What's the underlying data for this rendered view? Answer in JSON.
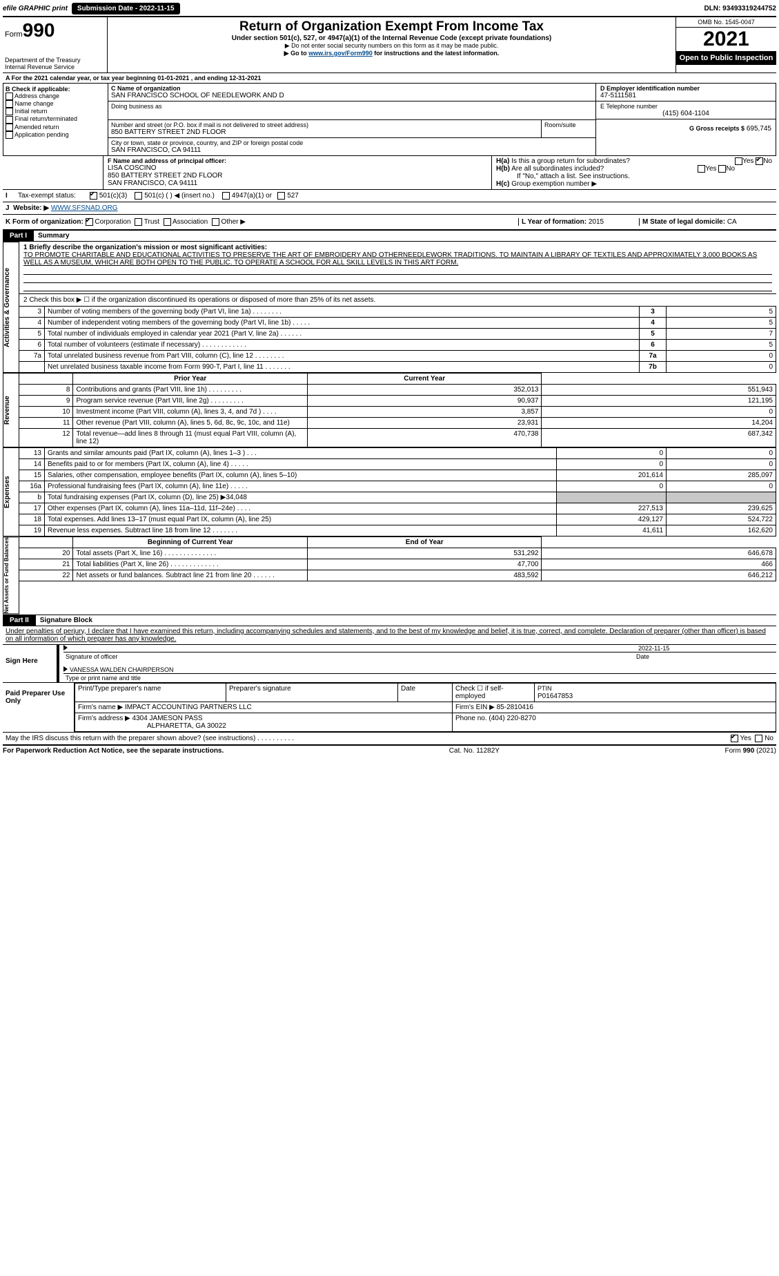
{
  "top": {
    "efile": "efile GRAPHIC print",
    "submission": "Submission Date - 2022-11-15",
    "dln": "DLN: 93493319244752"
  },
  "header": {
    "form_prefix": "Form",
    "form_no": "990",
    "title": "Return of Organization Exempt From Income Tax",
    "subtitle": "Under section 501(c), 527, or 4947(a)(1) of the Internal Revenue Code (except private foundations)",
    "note1": "▶ Do not enter social security numbers on this form as it may be made public.",
    "note2_pre": "▶ Go to ",
    "note2_link": "www.irs.gov/Form990",
    "note2_post": " for instructions and the latest information.",
    "dept": "Department of the Treasury",
    "irs": "Internal Revenue Service",
    "omb": "OMB No. 1545-0047",
    "year": "2021",
    "inspect": "Open to Public Inspection"
  },
  "A": {
    "text": "For the 2021 calendar year, or tax year beginning 01-01-2021     , and ending 12-31-2021"
  },
  "B": {
    "label": "B Check if applicable:",
    "items": [
      "Address change",
      "Name change",
      "Initial return",
      "Final return/terminated",
      "Amended return",
      "Application pending"
    ]
  },
  "C": {
    "name_label": "C Name of organization",
    "name": "SAN FRANCISCO SCHOOL OF NEEDLEWORK AND D",
    "dba_label": "Doing business as",
    "addr_label": "Number and street (or P.O. box if mail is not delivered to street address)",
    "room_label": "Room/suite",
    "addr": "850 BATTERY STREET 2ND FLOOR",
    "city_label": "City or town, state or province, country, and ZIP or foreign postal code",
    "city": "SAN FRANCISCO, CA  94111"
  },
  "D": {
    "label": "D Employer identification number",
    "value": "47-5111581"
  },
  "E": {
    "label": "E Telephone number",
    "value": "(415) 604-1104"
  },
  "G": {
    "label": "G Gross receipts $",
    "value": "695,745"
  },
  "F": {
    "label": "F  Name and address of principal officer:",
    "name": "LISA COSCINO",
    "addr1": "850 BATTERY STREET 2ND FLOOR",
    "addr2": "SAN FRANCISCO, CA  94111"
  },
  "H": {
    "a": "Is this a group return for subordinates?",
    "b": "Are all subordinates included?",
    "b_note": "If \"No,\" attach a list. See instructions.",
    "c": "Group exemption number ▶",
    "yes": "Yes",
    "no": "No"
  },
  "I": {
    "label": "Tax-exempt status:",
    "opts": [
      "501(c)(3)",
      "501(c) (   ) ◀ (insert no.)",
      "4947(a)(1) or",
      "527"
    ]
  },
  "J": {
    "label": "Website: ▶",
    "value": "WWW.SFSNAD.ORG"
  },
  "K": {
    "label": "K Form of organization:",
    "opts": [
      "Corporation",
      "Trust",
      "Association",
      "Other ▶"
    ]
  },
  "L": {
    "label": "L Year of formation:",
    "value": "2015"
  },
  "M": {
    "label": "M State of legal domicile:",
    "value": "CA"
  },
  "parts": {
    "p1": "Part I",
    "p1t": "Summary",
    "p2": "Part II",
    "p2t": "Signature Block"
  },
  "summary": {
    "l1_label": "1  Briefly describe the organization's mission or most significant activities:",
    "l1_text": "TO PROMOTE CHARITABLE AND EDUCATIONAL ACTIVITIES TO PRESERVE THE ART OF EMBROIDERY AND OTHERNEEDLEWORK TRADITIONS. TO MAINTAIN A LIBRARY OF TEXTILES AND APPROXIMATELY 3,000 BOOKS AS WELL AS A MUSEUM, WHICH ARE BOTH OPEN TO THE PUBLIC. TO OPERATE A SCHOOL FOR ALL SKILL LEVELS IN THIS ART FORM.",
    "l2": "2   Check this box ▶ ☐ if the organization discontinued its operations or disposed of more than 25% of its net assets.",
    "gov_rows": [
      {
        "n": "3",
        "t": "Number of voting members of the governing body (Part VI, line 1a)   .    .    .    .    .    .    .    .",
        "k": "3",
        "v": "5"
      },
      {
        "n": "4",
        "t": "Number of independent voting members of the governing body (Part VI, line 1b)   .    .    .    .    .",
        "k": "4",
        "v": "5"
      },
      {
        "n": "5",
        "t": "Total number of individuals employed in calendar year 2021 (Part V, line 2a)   .    .    .    .    .    .",
        "k": "5",
        "v": "7"
      },
      {
        "n": "6",
        "t": "Total number of volunteers (estimate if necessary)    .    .    .    .    .    .    .    .    .    .    .    .",
        "k": "6",
        "v": "5"
      },
      {
        "n": "7a",
        "t": "Total unrelated business revenue from Part VIII, column (C), line 12   .    .    .    .    .    .    .    .",
        "k": "7a",
        "v": "0"
      },
      {
        "n": "",
        "t": "Net unrelated business taxable income from Form 990-T, Part I, line 11    .    .    .    .    .    .    .",
        "k": "7b",
        "v": "0"
      }
    ],
    "col_headers": {
      "prior": "Prior Year",
      "current": "Current Year",
      "boy": "Beginning of Current Year",
      "eoy": "End of Year"
    },
    "rev_rows": [
      {
        "n": "8",
        "t": "Contributions and grants (Part VIII, line 1h)   .    .    .    .    .    .    .    .    .",
        "p": "352,013",
        "c": "551,943"
      },
      {
        "n": "9",
        "t": "Program service revenue (Part VIII, line 2g)   .    .    .    .    .    .    .    .    .",
        "p": "90,937",
        "c": "121,195"
      },
      {
        "n": "10",
        "t": "Investment income (Part VIII, column (A), lines 3, 4, and 7d )   .    .    .    .",
        "p": "3,857",
        "c": "0"
      },
      {
        "n": "11",
        "t": "Other revenue (Part VIII, column (A), lines 5, 6d, 8c, 9c, 10c, and 11e)",
        "p": "23,931",
        "c": "14,204"
      },
      {
        "n": "12",
        "t": "Total revenue—add lines 8 through 11 (must equal Part VIII, column (A), line 12)",
        "p": "470,738",
        "c": "687,342"
      }
    ],
    "exp_rows": [
      {
        "n": "13",
        "t": "Grants and similar amounts paid (Part IX, column (A), lines 1–3 )   .    .    .",
        "p": "0",
        "c": "0"
      },
      {
        "n": "14",
        "t": "Benefits paid to or for members (Part IX, column (A), line 4)   .    .    .    .    .",
        "p": "0",
        "c": "0"
      },
      {
        "n": "15",
        "t": "Salaries, other compensation, employee benefits (Part IX, column (A), lines 5–10)",
        "p": "201,614",
        "c": "285,097"
      },
      {
        "n": "16a",
        "t": "Professional fundraising fees (Part IX, column (A), line 11e)   .    .    .    .    .",
        "p": "0",
        "c": "0"
      },
      {
        "n": "b",
        "t": "Total fundraising expenses (Part IX, column (D), line 25) ▶34,048",
        "p": "",
        "c": "",
        "grey": true
      },
      {
        "n": "17",
        "t": "Other expenses (Part IX, column (A), lines 11a–11d, 11f–24e)   .    .    .    .",
        "p": "227,513",
        "c": "239,625"
      },
      {
        "n": "18",
        "t": "Total expenses. Add lines 13–17 (must equal Part IX, column (A), line 25)",
        "p": "429,127",
        "c": "524,722"
      },
      {
        "n": "19",
        "t": "Revenue less expenses. Subtract line 18 from line 12   .    .    .    .    .    .    .",
        "p": "41,611",
        "c": "162,620"
      }
    ],
    "na_rows": [
      {
        "n": "20",
        "t": "Total assets (Part X, line 16)   .    .    .    .    .    .    .    .    .    .    .    .    .    .",
        "p": "531,292",
        "c": "646,678"
      },
      {
        "n": "21",
        "t": "Total liabilities (Part X, line 26)   .    .    .    .    .    .    .    .    .    .    .    .    .",
        "p": "47,700",
        "c": "466"
      },
      {
        "n": "22",
        "t": "Net assets or fund balances. Subtract line 21 from line 20   .    .    .    .    .    .",
        "p": "483,592",
        "c": "646,212"
      }
    ],
    "side_labels": {
      "gov": "Activities & Governance",
      "rev": "Revenue",
      "exp": "Expenses",
      "na": "Net Assets or Fund Balances"
    }
  },
  "sigblock": {
    "perjury": "Under penalties of perjury, I declare that I have examined this return, including accompanying schedules and statements, and to the best of my knowledge and belief, it is true, correct, and complete. Declaration of preparer (other than officer) is based on all information of which preparer has any knowledge.",
    "sign_here": "Sign Here",
    "sig_officer": "Signature of officer",
    "sig_date": "2022-11-15",
    "date_lbl": "Date",
    "name_title": "VANESSA WALDEN  CHAIRPERSON",
    "type_name": "Type or print name and title",
    "paid": "Paid Preparer Use Only",
    "h1": "Print/Type preparer's name",
    "h2": "Preparer's signature",
    "h3": "Date",
    "check_self": "Check ☐ if self-employed",
    "ptin_lbl": "PTIN",
    "ptin": "P01647853",
    "firm_name_lbl": "Firm's name    ▶",
    "firm_name": "IMPACT ACCOUNTING PARTNERS LLC",
    "firm_ein_lbl": "Firm's EIN ▶",
    "firm_ein": "85-2810416",
    "firm_addr_lbl": "Firm's address ▶",
    "firm_addr1": "4304 JAMESON PASS",
    "firm_addr2": "ALPHARETTA, GA  30022",
    "phone_lbl": "Phone no.",
    "phone": "(404) 220-8270",
    "discuss": "May the IRS discuss this return with the preparer shown above? (see instructions)   .    .    .    .    .    .    .    .    .    .",
    "yes": "Yes",
    "no": "No"
  },
  "footer": {
    "pra": "For Paperwork Reduction Act Notice, see the separate instructions.",
    "cat": "Cat. No. 11282Y",
    "form": "Form 990 (2021)"
  }
}
